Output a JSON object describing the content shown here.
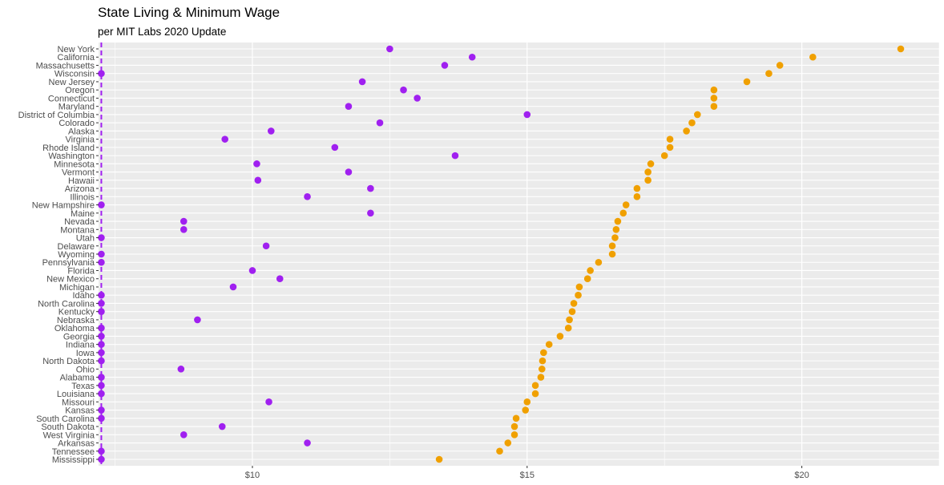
{
  "colors": {
    "minimum_wage": "#a020f0",
    "living_wage": "#f0a000",
    "panel_background": "#ebebeb",
    "grid": "#ffffff",
    "reference_line": "#a020f0"
  },
  "chart_data": {
    "type": "scatter",
    "title": "State Living & Minimum Wage",
    "subtitle": "per MIT Labs 2020 Update",
    "xlabel": "",
    "ylabel": "",
    "xlim": [
      7.2,
      22.5
    ],
    "x_ticks": [
      10,
      15,
      20
    ],
    "x_tick_labels": [
      "$10",
      "$15",
      "$20"
    ],
    "reference_line": {
      "x": 7.25,
      "style": "dashed"
    },
    "grid": true,
    "legend": "none",
    "categories": [
      "New York",
      "California",
      "Massachusetts",
      "Wisconsin",
      "New Jersey",
      "Oregon",
      "Connecticut",
      "Maryland",
      "District of Columbia",
      "Colorado",
      "Alaska",
      "Virginia",
      "Rhode Island",
      "Washington",
      "Minnesota",
      "Vermont",
      "Hawaii",
      "Arizona",
      "Illinois",
      "New Hampshire",
      "Maine",
      "Nevada",
      "Montana",
      "Utah",
      "Delaware",
      "Wyoming",
      "Pennsylvania",
      "Florida",
      "New Mexico",
      "Michigan",
      "Idaho",
      "North Carolina",
      "Kentucky",
      "Nebraska",
      "Oklahoma",
      "Georgia",
      "Indiana",
      "Iowa",
      "North Dakota",
      "Ohio",
      "Alabama",
      "Texas",
      "Louisiana",
      "Missouri",
      "Kansas",
      "South Carolina",
      "South Dakota",
      "West Virginia",
      "Arkansas",
      "Tennessee",
      "Mississippi"
    ],
    "series": [
      {
        "values": [
          12.5,
          14.0,
          13.5,
          7.25,
          12.0,
          12.75,
          13.0,
          11.75,
          15.0,
          12.32,
          10.34,
          9.5,
          11.5,
          13.69,
          10.08,
          11.75,
          10.1,
          12.15,
          11.0,
          7.25,
          12.15,
          8.75,
          8.75,
          7.25,
          10.25,
          7.25,
          7.25,
          10.0,
          10.5,
          9.65,
          7.25,
          7.25,
          7.25,
          9.0,
          7.25,
          7.25,
          7.25,
          7.25,
          7.25,
          8.7,
          7.25,
          7.25,
          7.25,
          10.3,
          7.25,
          7.25,
          9.45,
          8.75,
          11.0,
          7.25,
          7.25
        ]
      },
      {
        "values": [
          21.8,
          20.2,
          19.6,
          19.4,
          19.0,
          18.4,
          18.4,
          18.4,
          18.1,
          18.0,
          17.9,
          17.6,
          17.6,
          17.5,
          17.25,
          17.2,
          17.2,
          17.0,
          17.0,
          16.8,
          16.75,
          16.65,
          16.62,
          16.6,
          16.55,
          16.55,
          16.3,
          16.15,
          16.1,
          15.95,
          15.93,
          15.85,
          15.82,
          15.77,
          15.75,
          15.6,
          15.4,
          15.3,
          15.28,
          15.27,
          15.25,
          15.15,
          15.15,
          15.0,
          14.97,
          14.8,
          14.77,
          14.77,
          14.65,
          14.5,
          13.4
        ]
      }
    ]
  }
}
